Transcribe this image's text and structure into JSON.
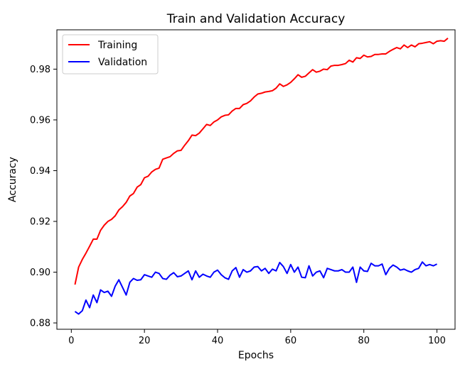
{
  "chart_data": {
    "type": "line",
    "title": "Train and Validation Accuracy",
    "xlabel": "Epochs",
    "ylabel": "Accuracy",
    "xlim": [
      -3.95,
      104.95
    ],
    "ylim": [
      0.8775,
      0.9955
    ],
    "xticks": [
      0,
      20,
      40,
      60,
      80,
      100
    ],
    "yticks": [
      0.88,
      0.9,
      0.92,
      0.94,
      0.96,
      0.98
    ],
    "ytick_labels": [
      "0.88",
      "0.90",
      "0.92",
      "0.94",
      "0.96",
      "0.98"
    ],
    "grid": false,
    "legend": "top-left",
    "x_start": 1,
    "series": [
      {
        "name": "Training",
        "color": "#ff0000",
        "values": [
          0.8951,
          0.902,
          0.905,
          0.9075,
          0.9102,
          0.913,
          0.913,
          0.9165,
          0.9185,
          0.92,
          0.9208,
          0.9222,
          0.9245,
          0.9258,
          0.9275,
          0.93,
          0.931,
          0.9335,
          0.9345,
          0.9372,
          0.9378,
          0.9395,
          0.9405,
          0.941,
          0.9445,
          0.945,
          0.9455,
          0.9468,
          0.9478,
          0.948,
          0.95,
          0.9518,
          0.954,
          0.9538,
          0.9548,
          0.9565,
          0.9582,
          0.9578,
          0.9592,
          0.96,
          0.9612,
          0.9618,
          0.962,
          0.9635,
          0.9645,
          0.9645,
          0.966,
          0.9665,
          0.9675,
          0.969,
          0.9702,
          0.9705,
          0.971,
          0.9712,
          0.9715,
          0.9725,
          0.9742,
          0.9732,
          0.9738,
          0.9748,
          0.9762,
          0.9778,
          0.9768,
          0.9772,
          0.9785,
          0.9798,
          0.9788,
          0.9792,
          0.98,
          0.9798,
          0.9812,
          0.9815,
          0.9815,
          0.9818,
          0.9822,
          0.9835,
          0.9828,
          0.9845,
          0.9842,
          0.9855,
          0.9848,
          0.985,
          0.9858,
          0.9858,
          0.986,
          0.986,
          0.987,
          0.9878,
          0.9885,
          0.988,
          0.9895,
          0.9885,
          0.9895,
          0.9888,
          0.99,
          0.9902,
          0.9905,
          0.9908,
          0.99,
          0.991,
          0.9912,
          0.991,
          0.9922
        ]
      },
      {
        "name": "Validation",
        "color": "#0000ff",
        "values": [
          0.8845,
          0.8835,
          0.8848,
          0.889,
          0.886,
          0.891,
          0.888,
          0.893,
          0.892,
          0.8925,
          0.8905,
          0.8945,
          0.897,
          0.894,
          0.891,
          0.896,
          0.8975,
          0.8968,
          0.897,
          0.899,
          0.8985,
          0.898,
          0.9,
          0.8995,
          0.8975,
          0.8972,
          0.8988,
          0.8998,
          0.8982,
          0.8985,
          0.8995,
          0.9005,
          0.897,
          0.9005,
          0.898,
          0.8992,
          0.8985,
          0.898,
          0.9,
          0.9008,
          0.899,
          0.8978,
          0.8972,
          0.9005,
          0.9018,
          0.898,
          0.901,
          0.9,
          0.9005,
          0.902,
          0.9022,
          0.9005,
          0.9015,
          0.8995,
          0.9012,
          0.9005,
          0.9038,
          0.9022,
          0.8995,
          0.903,
          0.9,
          0.902,
          0.898,
          0.8978,
          0.9025,
          0.8985,
          0.9,
          0.9005,
          0.8978,
          0.9015,
          0.901,
          0.9005,
          0.9005,
          0.901,
          0.9,
          0.9,
          0.902,
          0.896,
          0.902,
          0.9005,
          0.9003,
          0.9035,
          0.9025,
          0.9025,
          0.9032,
          0.899,
          0.9015,
          0.9028,
          0.902,
          0.9008,
          0.9012,
          0.9005,
          0.9,
          0.901,
          0.9015,
          0.904,
          0.9025,
          0.903,
          0.9025,
          0.9032
        ]
      }
    ]
  }
}
